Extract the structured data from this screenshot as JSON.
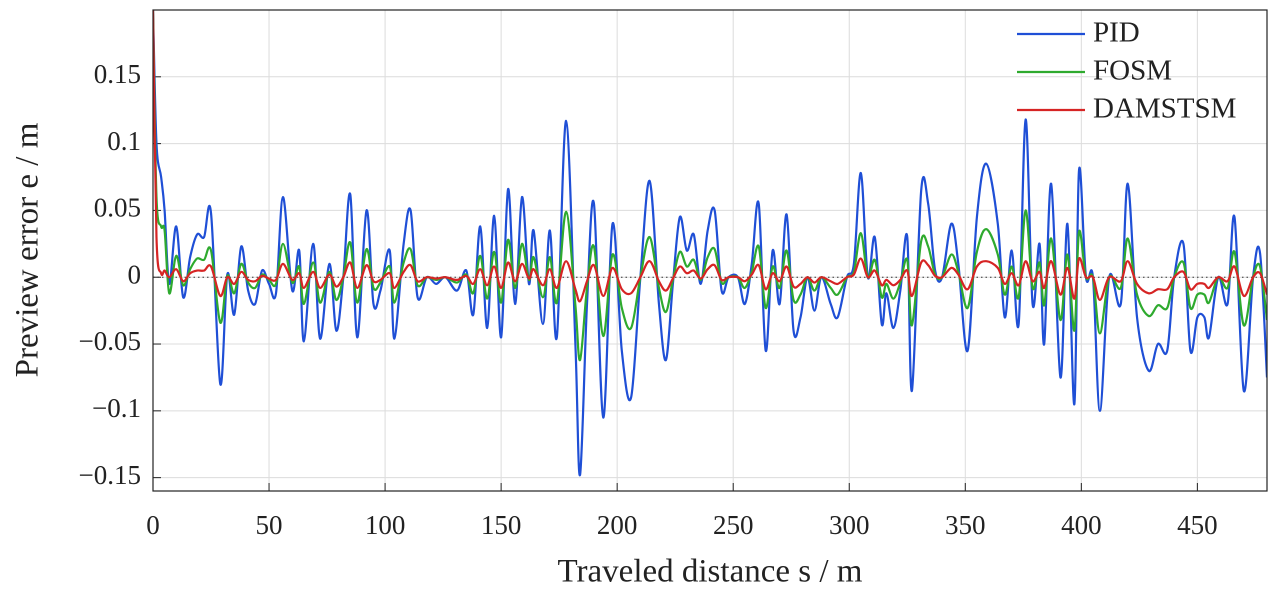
{
  "chart_data": {
    "type": "line",
    "xlabel": "Traveled distance s / m",
    "ylabel": "Preview error e / m",
    "xlim": [
      0,
      480
    ],
    "ylim": [
      -0.16,
      0.2
    ],
    "xticks": [
      0,
      50,
      100,
      150,
      200,
      250,
      300,
      350,
      400,
      450
    ],
    "yticks": [
      {
        "value": -0.15,
        "label": "−0.15"
      },
      {
        "value": -0.1,
        "label": "−0.1"
      },
      {
        "value": -0.05,
        "label": "−0.05"
      },
      0,
      0.05,
      0.1,
      0.15
    ],
    "grid": true,
    "zero_line": true,
    "legend": "upper right",
    "x": [
      0,
      1.5,
      3.5,
      5,
      7,
      10,
      13,
      16,
      19,
      22,
      25,
      29,
      32,
      35,
      38,
      41,
      44,
      47,
      50,
      53,
      56,
      60,
      63,
      65,
      69,
      72,
      76,
      79,
      82,
      85,
      88,
      92,
      95,
      98,
      102,
      104,
      108,
      111,
      114,
      118,
      122,
      126,
      131,
      135,
      138,
      141,
      144,
      147,
      150,
      153,
      156,
      159,
      162,
      164,
      168,
      171,
      174,
      178,
      182,
      184,
      187,
      190,
      194,
      198,
      202,
      206,
      210,
      214,
      218,
      221,
      224,
      227,
      230,
      233,
      236,
      239,
      242,
      245,
      248,
      252,
      255,
      258,
      261,
      264,
      267,
      270,
      273,
      276,
      279,
      282,
      285,
      288,
      292,
      295,
      299,
      302,
      305,
      308,
      311,
      314,
      316,
      319,
      322,
      325,
      327,
      331,
      334,
      337,
      340,
      344,
      347,
      351,
      355,
      359,
      364,
      367,
      370,
      373,
      376,
      379,
      382,
      384,
      387,
      391,
      394,
      397,
      399,
      402,
      405,
      408,
      412,
      417,
      420,
      424,
      429,
      433,
      437,
      440,
      444,
      447,
      450,
      453,
      455,
      459,
      463,
      466,
      470,
      474,
      477,
      480
    ],
    "series": [
      {
        "name": "PID",
        "color": "#1f4fd6",
        "values": [
          0.2,
          0.1,
          0.075,
          0.05,
          -0.005,
          0.038,
          -0.015,
          0.015,
          0.032,
          0.03,
          0.048,
          -0.08,
          0.002,
          -0.028,
          0.023,
          -0.01,
          -0.02,
          0.005,
          -0.005,
          -0.012,
          0.06,
          -0.01,
          0.02,
          -0.048,
          0.025,
          -0.046,
          0.01,
          -0.04,
          0,
          0.062,
          -0.045,
          0.05,
          -0.02,
          -0.01,
          0.02,
          -0.046,
          0.025,
          0.05,
          -0.015,
          0,
          -0.005,
          0,
          -0.01,
          0.005,
          -0.028,
          0.038,
          -0.038,
          0.046,
          -0.045,
          0.066,
          -0.02,
          0.06,
          -0.005,
          0.035,
          -0.035,
          0.035,
          -0.045,
          0.117,
          -0.05,
          -0.148,
          -0.02,
          0.055,
          -0.105,
          0.04,
          -0.055,
          -0.09,
          0,
          0.072,
          -0.02,
          -0.062,
          -0.005,
          0.045,
          0.02,
          0.032,
          -0.005,
          0.035,
          0.05,
          -0.01,
          0,
          0,
          -0.02,
          0.01,
          0.055,
          -0.055,
          0.02,
          -0.02,
          0.047,
          -0.04,
          -0.03,
          0,
          -0.025,
          0,
          -0.02,
          -0.03,
          0,
          0.01,
          0.078,
          0,
          0.03,
          -0.035,
          -0.012,
          -0.038,
          -0.01,
          0.03,
          -0.085,
          0.065,
          0.055,
          0.005,
          0,
          0.04,
          0.01,
          -0.055,
          0.045,
          0.085,
          0.04,
          -0.03,
          0.02,
          -0.035,
          0.118,
          -0.02,
          0.025,
          -0.05,
          0.07,
          -0.075,
          0.04,
          -0.095,
          0.08,
          0,
          0,
          -0.1,
          0,
          -0.02,
          0.07,
          -0.03,
          -0.07,
          -0.05,
          -0.055,
          0,
          0.025,
          -0.055,
          -0.03,
          -0.03,
          -0.045,
          0,
          -0.02,
          0.045,
          -0.085,
          0,
          0.018,
          -0.075
        ]
      },
      {
        "name": "FOSM",
        "color": "#2eaa2e",
        "values": [
          0.2,
          0.06,
          0.038,
          0.035,
          -0.012,
          0.016,
          -0.006,
          0.006,
          0.014,
          0.013,
          0.02,
          -0.034,
          0.001,
          -0.012,
          0.01,
          -0.004,
          -0.008,
          0.002,
          -0.002,
          -0.005,
          0.025,
          -0.004,
          0.008,
          -0.02,
          0.011,
          -0.019,
          0.004,
          -0.017,
          0,
          0.026,
          -0.019,
          0.021,
          -0.008,
          -0.004,
          0.008,
          -0.019,
          0.011,
          0.021,
          -0.006,
          0,
          -0.002,
          0,
          -0.004,
          0.002,
          -0.012,
          0.016,
          -0.016,
          0.019,
          -0.019,
          0.028,
          -0.008,
          0.025,
          -0.002,
          0.015,
          -0.015,
          0.015,
          -0.019,
          0.049,
          -0.021,
          -0.062,
          -0.008,
          0.023,
          -0.044,
          0.017,
          -0.023,
          -0.038,
          0,
          0.03,
          -0.008,
          -0.026,
          -0.002,
          0.019,
          0.008,
          0.013,
          -0.002,
          0.015,
          0.021,
          -0.004,
          0,
          0,
          -0.008,
          0.004,
          0.023,
          -0.023,
          0.008,
          -0.008,
          0.02,
          -0.017,
          -0.013,
          0,
          -0.01,
          0,
          -0.008,
          -0.013,
          0,
          0.004,
          0.033,
          0,
          0.013,
          -0.015,
          -0.005,
          -0.016,
          -0.004,
          0.013,
          -0.036,
          0.027,
          0.023,
          0.002,
          0,
          0.017,
          0.004,
          -0.023,
          0.019,
          0.036,
          0.017,
          -0.013,
          0.008,
          -0.015,
          0.05,
          -0.008,
          0.011,
          -0.021,
          0.029,
          -0.032,
          0.017,
          -0.04,
          0.034,
          0,
          0,
          -0.042,
          0,
          -0.008,
          0.029,
          -0.013,
          -0.029,
          -0.021,
          -0.023,
          0,
          0.011,
          -0.023,
          -0.013,
          -0.013,
          -0.019,
          0,
          -0.008,
          0.019,
          -0.036,
          0,
          0.008,
          -0.032
        ]
      },
      {
        "name": "DAMSTSM",
        "color": "#d62424",
        "values": [
          0.2,
          0.03,
          0.003,
          0.005,
          0,
          0.006,
          -0.003,
          0.003,
          0.005,
          0.005,
          0.008,
          -0.014,
          0,
          -0.005,
          0.004,
          -0.002,
          -0.003,
          0.001,
          -0.001,
          -0.002,
          0.01,
          -0.002,
          0.003,
          -0.008,
          0.004,
          -0.008,
          0.002,
          -0.007,
          0,
          0.011,
          -0.008,
          0.009,
          -0.003,
          -0.002,
          0.003,
          -0.008,
          0.004,
          0.009,
          -0.003,
          0,
          -0.001,
          0,
          -0.002,
          0.001,
          -0.005,
          0.006,
          -0.006,
          0.008,
          -0.008,
          0.011,
          -0.003,
          0.01,
          -0.001,
          0.006,
          -0.006,
          0.006,
          -0.008,
          0.012,
          -0.009,
          -0.018,
          -0.003,
          0.009,
          -0.014,
          0.007,
          -0.009,
          -0.012,
          0,
          0.012,
          -0.003,
          -0.01,
          -0.001,
          0.008,
          0.003,
          0.005,
          -0.001,
          0.006,
          0.009,
          -0.002,
          0,
          0,
          -0.003,
          0.002,
          0.009,
          -0.009,
          0.003,
          -0.003,
          0.008,
          -0.007,
          -0.005,
          0,
          -0.004,
          0,
          -0.003,
          -0.005,
          0,
          0.002,
          0.014,
          0,
          0.005,
          -0.006,
          -0.002,
          -0.006,
          -0.002,
          0.005,
          -0.014,
          0.011,
          0.009,
          0.001,
          0,
          0.007,
          0.002,
          -0.009,
          0.008,
          0.012,
          0.007,
          -0.005,
          0.003,
          -0.006,
          0.012,
          -0.003,
          0.004,
          -0.008,
          0.012,
          -0.013,
          0.007,
          -0.016,
          0.014,
          0,
          0,
          -0.017,
          0,
          -0.003,
          0.012,
          -0.005,
          -0.012,
          -0.009,
          -0.009,
          0,
          0.004,
          -0.009,
          -0.005,
          -0.005,
          -0.008,
          0,
          -0.003,
          0.008,
          -0.014,
          0,
          0.003,
          -0.013
        ]
      }
    ]
  }
}
